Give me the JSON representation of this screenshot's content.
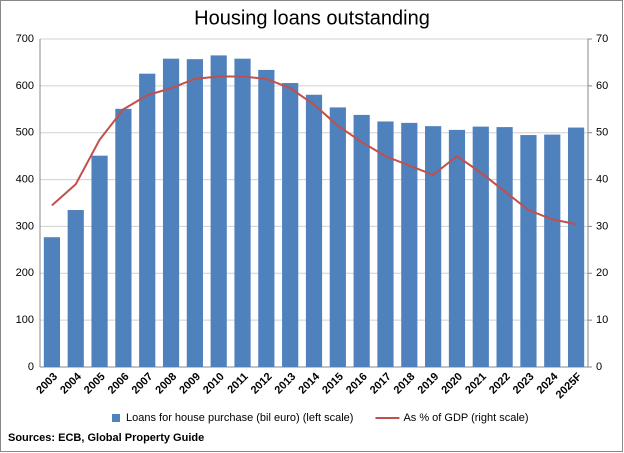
{
  "chart_data": {
    "type": "bar",
    "title": "Housing loans outstanding",
    "source": "Sources: ECB, Global Property Guide",
    "categories": [
      "2003",
      "2004",
      "2005",
      "2006",
      "2007",
      "2008",
      "2009",
      "2010",
      "2011",
      "2012",
      "2013",
      "2014",
      "2015",
      "2016",
      "2017",
      "2018",
      "2019",
      "2020",
      "2021",
      "2022",
      "2023",
      "2024",
      "2025F"
    ],
    "series": [
      {
        "name": "Loans for house purchase (bil euro) (left scale)",
        "color": "#4f81bd",
        "type": "bar",
        "values": [
          277,
          335,
          451,
          551,
          626,
          658,
          657,
          665,
          658,
          634,
          606,
          581,
          554,
          538,
          524,
          521,
          514,
          506,
          513,
          512,
          495,
          496,
          511
        ]
      },
      {
        "name": "As % of GDP (right scale)",
        "color": "#c0504d",
        "type": "line",
        "axis": "y2",
        "values": [
          34.5,
          39,
          48.5,
          55,
          58,
          59.5,
          61.5,
          62,
          62,
          61.5,
          59.5,
          56,
          51.5,
          48,
          45,
          43,
          41,
          45,
          41.5,
          37.5,
          33.5,
          31.5,
          30.5
        ]
      }
    ],
    "ylim": [
      0,
      700
    ],
    "yticks": [
      0,
      100,
      200,
      300,
      400,
      500,
      600,
      700
    ],
    "y2lim": [
      0,
      70
    ],
    "y2ticks": [
      0,
      10,
      20,
      30,
      40,
      50,
      60,
      70
    ],
    "grid": true,
    "legend": "bottom"
  }
}
